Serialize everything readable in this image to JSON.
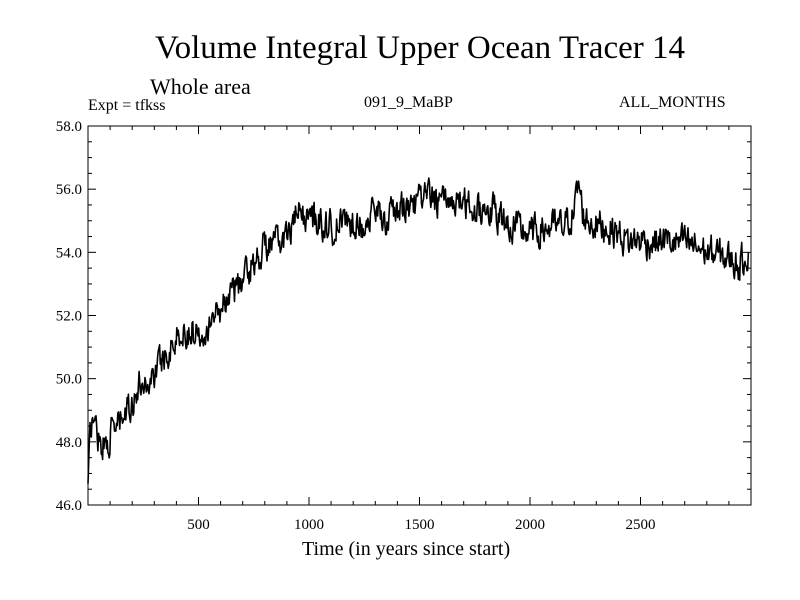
{
  "chart_data": {
    "type": "line",
    "title": "Volume Integral Upper Ocean Tracer 14",
    "subtitle": "Whole area",
    "experiment_label": "Expt = tfkss",
    "run_label": "091_9_MaBP",
    "months_label": "ALL_MONTHS",
    "xlabel": "Time (in years since start)",
    "ylabel": "",
    "xlim": [
      0,
      3000
    ],
    "ylim": [
      46.0,
      58.0
    ],
    "x_ticks": [
      500,
      1000,
      1500,
      2000,
      2500
    ],
    "y_ticks": [
      "46.0",
      "48.0",
      "50.0",
      "52.0",
      "54.0",
      "56.0",
      "58.0"
    ],
    "line_color": "#000000",
    "series": [
      {
        "name": "Tracer 14",
        "x": [
          0,
          10,
          20,
          40,
          60,
          80,
          100,
          130,
          160,
          200,
          240,
          280,
          300,
          350,
          400,
          450,
          500,
          550,
          600,
          650,
          700,
          750,
          800,
          850,
          900,
          950,
          1000,
          1050,
          1100,
          1150,
          1200,
          1250,
          1300,
          1350,
          1400,
          1450,
          1500,
          1550,
          1600,
          1650,
          1700,
          1750,
          1800,
          1850,
          1900,
          1950,
          2000,
          2050,
          2100,
          2150,
          2200,
          2220,
          2240,
          2260,
          2300,
          2350,
          2400,
          2450,
          2500,
          2550,
          2600,
          2650,
          2700,
          2750,
          2800,
          2850,
          2900,
          2950,
          2990
        ],
        "values": [
          46.5,
          48.2,
          48.8,
          48.4,
          48.0,
          47.9,
          48.2,
          48.5,
          48.7,
          49.3,
          49.9,
          49.9,
          50.2,
          50.8,
          51.3,
          51.5,
          51.5,
          51.8,
          52.3,
          52.8,
          53.1,
          53.7,
          54.2,
          54.3,
          54.5,
          55.2,
          55.1,
          55.0,
          54.8,
          54.9,
          55.0,
          54.9,
          55.3,
          55.1,
          55.3,
          55.5,
          55.6,
          55.8,
          55.5,
          55.7,
          55.6,
          55.3,
          55.5,
          55.2,
          54.9,
          54.7,
          54.6,
          54.7,
          54.8,
          54.8,
          55.3,
          56.2,
          55.2,
          55.0,
          54.9,
          54.8,
          54.6,
          54.3,
          54.4,
          54.3,
          54.4,
          54.3,
          54.3,
          54.2,
          54.0,
          53.9,
          53.8,
          53.6,
          54.1
        ]
      }
    ]
  }
}
